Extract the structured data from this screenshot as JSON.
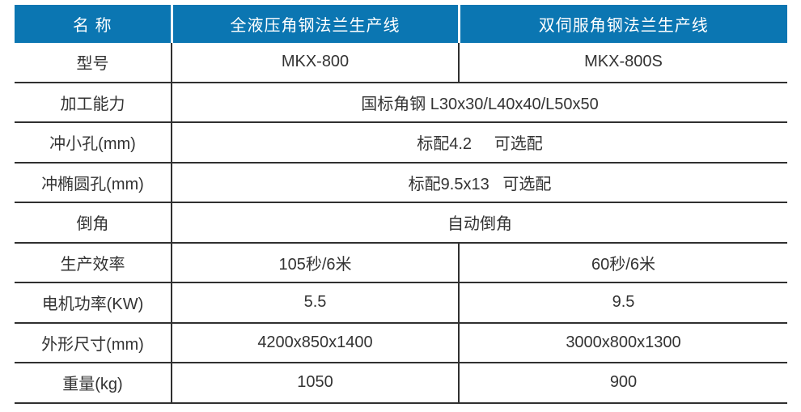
{
  "colors": {
    "header_bg": "#0b76b2",
    "header_text": "#ffffff",
    "grid_line": "#303030",
    "body_text": "#333333"
  },
  "table": {
    "header": {
      "name": "名 称",
      "product1": "全液压角钢法兰生产线",
      "product2": "双伺服角钢法兰生产线"
    },
    "rows": [
      {
        "label": "型号",
        "values": [
          "MKX-800",
          "MKX-800S"
        ]
      },
      {
        "label": "加工能力",
        "value": "国标角钢 L30x30/L40x40/L50x50"
      },
      {
        "label": "冲小孔(mm)",
        "value": "标配4.2     可选配"
      },
      {
        "label": "冲椭圆孔(mm)",
        "value": "标配9.5x13   可选配"
      },
      {
        "label": "倒角",
        "value": "自动倒角"
      },
      {
        "label": "生产效率",
        "values": [
          "105秒/6米",
          "60秒/6米"
        ]
      },
      {
        "label": "电机功率(KW)",
        "values": [
          "5.5",
          "9.5"
        ]
      },
      {
        "label": "外形尺寸(mm)",
        "values": [
          "4200x850x1400",
          "3000x800x1300"
        ]
      },
      {
        "label": "重量(kg)",
        "values": [
          "1050",
          "900"
        ]
      }
    ]
  }
}
